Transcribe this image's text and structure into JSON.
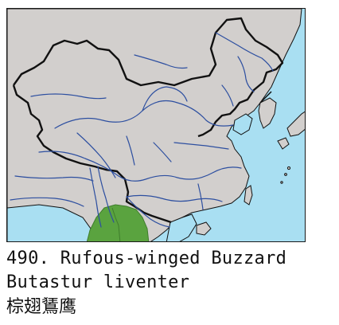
{
  "species": {
    "number_title": "490. Rufous-winged Buzzard",
    "scientific_name": "Butastur liventer",
    "chinese_name": "棕翅鵟鹰"
  },
  "map": {
    "colors": {
      "sea": "#a9dff2",
      "land": "#d2cfcd",
      "border": "#111111",
      "rivers": "#2d4fa0",
      "range": "#5aa33f",
      "range_outline": "#3f7d2c"
    },
    "range_type": "resident",
    "range_region": "southern Yunnan / northern Myanmar–Laos border area"
  }
}
